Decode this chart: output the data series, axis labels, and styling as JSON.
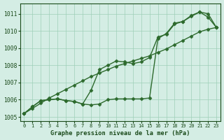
{
  "title": "Graphe pression niveau de la mer (hPa)",
  "x_values": [
    0,
    1,
    2,
    3,
    4,
    5,
    6,
    7,
    8,
    9,
    10,
    11,
    12,
    13,
    14,
    15,
    16,
    17,
    18,
    19,
    20,
    21,
    22,
    23
  ],
  "line1_straight": [
    1005.2,
    1005.5,
    1005.8,
    1006.1,
    1006.35,
    1006.6,
    1006.85,
    1007.1,
    1007.35,
    1007.55,
    1007.75,
    1007.95,
    1008.1,
    1008.25,
    1008.4,
    1008.55,
    1008.75,
    1008.95,
    1009.2,
    1009.45,
    1009.7,
    1009.95,
    1010.1,
    1010.2
  ],
  "line2_wiggly": [
    1005.2,
    1005.6,
    1005.95,
    1006.0,
    1006.05,
    1005.95,
    1005.9,
    1005.75,
    1006.55,
    1007.75,
    1008.0,
    1008.25,
    1008.2,
    1008.1,
    1008.2,
    1008.45,
    1009.65,
    1009.8,
    1010.4,
    1010.55,
    1010.9,
    1011.1,
    1010.8,
    1010.2
  ],
  "line3_upper": [
    1005.2,
    1005.6,
    1005.95,
    1006.0,
    1006.05,
    1005.95,
    1005.9,
    1005.75,
    1005.7,
    1005.75,
    1006.0,
    1006.05,
    1006.05,
    1006.05,
    1006.05,
    1006.1,
    1009.55,
    1009.85,
    1010.45,
    1010.55,
    1010.85,
    1011.1,
    1011.0,
    1010.2
  ],
  "line_color": "#2d6a2d",
  "bg_color": "#d4ede4",
  "grid_color": "#9ecfb8",
  "text_color": "#1a4a1a",
  "ylim": [
    1004.75,
    1011.6
  ],
  "yticks": [
    1005,
    1006,
    1007,
    1008,
    1009,
    1010,
    1011
  ],
  "xlim": [
    -0.5,
    23.5
  ],
  "xticks": [
    0,
    1,
    2,
    3,
    4,
    5,
    6,
    7,
    8,
    9,
    10,
    11,
    12,
    13,
    14,
    15,
    16,
    17,
    18,
    19,
    20,
    21,
    22,
    23
  ],
  "marker": "D",
  "marker_size": 2.5,
  "line_width": 1.0
}
